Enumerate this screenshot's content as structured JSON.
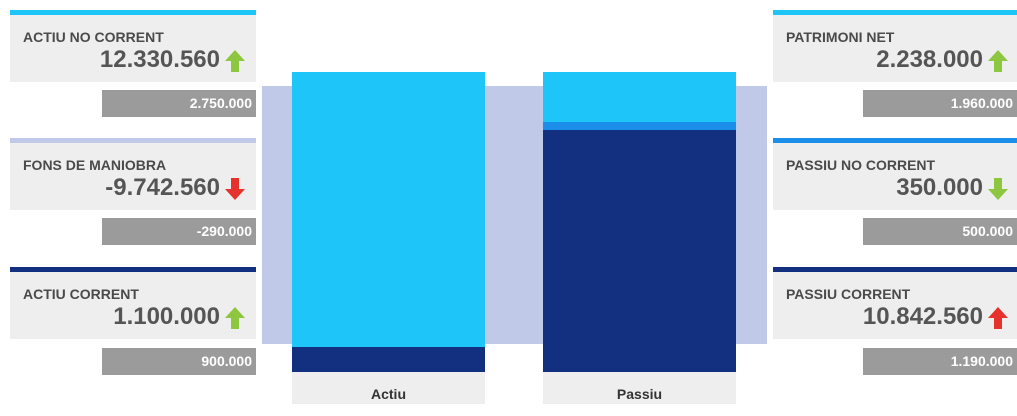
{
  "colors": {
    "light_blue": "#1ec5f8",
    "mid_blue": "#1a8ee8",
    "dark_blue": "#12307f",
    "chart_bg": "#c0cae8",
    "card_bg": "#eeeeee",
    "delta_bg": "#9b9b9b",
    "up_green": "#8dc63f",
    "down_red": "#e5322d"
  },
  "left_cards": [
    {
      "label": "ACTIU NO CORRENT",
      "value": "12.330.560",
      "delta": "2.750.000",
      "arrow": "arrow-up-green-icon",
      "accent": "light_blue"
    },
    {
      "label": "FONS DE MANIOBRA",
      "value": "-9.742.560",
      "delta": "-290.000",
      "arrow": "arrow-down-red-icon",
      "accent": "chart_bg"
    },
    {
      "label": "ACTIU CORRENT",
      "value": "1.100.000",
      "delta": "900.000",
      "arrow": "arrow-up-green-icon",
      "accent": "dark_blue"
    }
  ],
  "right_cards": [
    {
      "label": "PATRIMONI NET",
      "value": "2.238.000",
      "delta": "1.960.000",
      "arrow": "arrow-up-green-icon",
      "accent": "light_blue"
    },
    {
      "label": "PASSIU NO CORRENT",
      "value": "350.000",
      "delta": "500.000",
      "arrow": "arrow-down-green-icon",
      "accent": "mid_blue"
    },
    {
      "label": "PASSIU CORRENT",
      "value": "10.842.560",
      "delta": "1.190.000",
      "arrow": "arrow-up-red-icon",
      "accent": "dark_blue"
    }
  ],
  "chart_data": {
    "type": "bar",
    "stacked": true,
    "categories": [
      "Actiu",
      "Passiu"
    ],
    "series": [
      {
        "name": "ACTIU CORRENT",
        "category": "Actiu",
        "value": 1100000,
        "color": "#12307f"
      },
      {
        "name": "ACTIU NO CORRENT",
        "category": "Actiu",
        "value": 12330560,
        "color": "#1ec5f8"
      },
      {
        "name": "PASSIU CORRENT",
        "category": "Passiu",
        "value": 10842560,
        "color": "#12307f"
      },
      {
        "name": "PASSIU NO CORRENT",
        "category": "Passiu",
        "value": 350000,
        "color": "#1a8ee8"
      },
      {
        "name": "PATRIMONI NET",
        "category": "Passiu",
        "value": 2238000,
        "color": "#1ec5f8"
      }
    ],
    "title": "",
    "xlabel": "",
    "ylabel": "",
    "grid": false,
    "legend": "none"
  }
}
